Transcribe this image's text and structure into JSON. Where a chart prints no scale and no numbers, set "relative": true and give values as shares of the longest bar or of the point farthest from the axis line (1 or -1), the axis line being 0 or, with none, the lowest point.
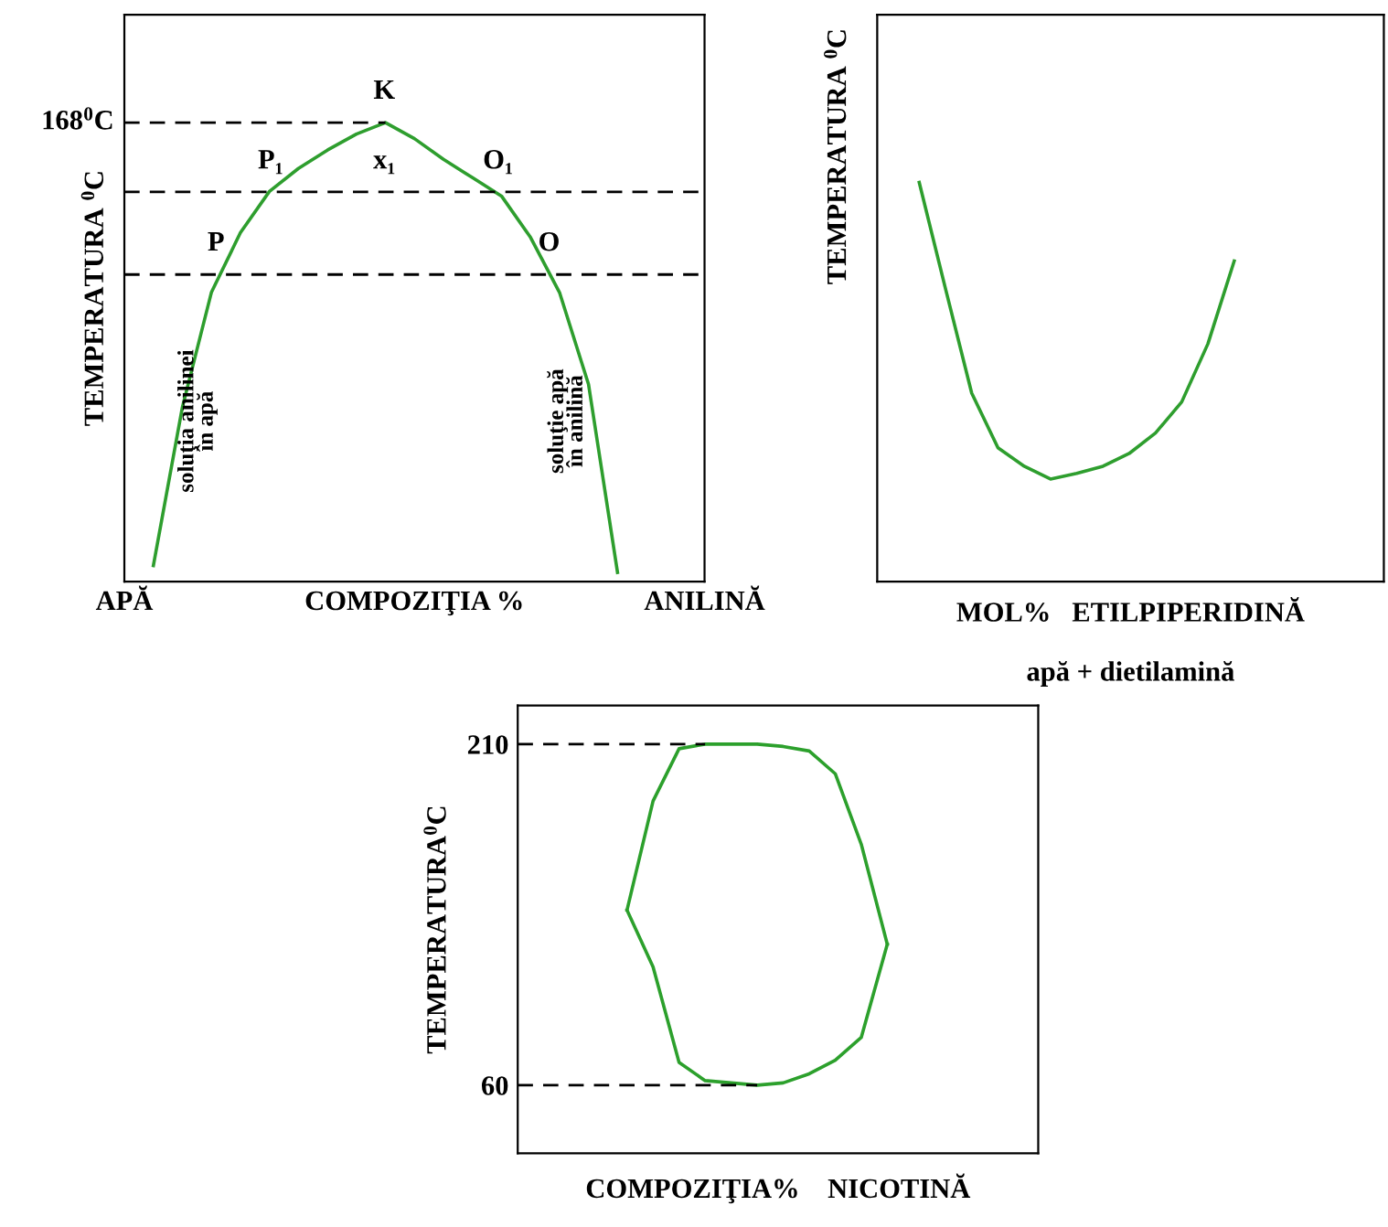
{
  "chart_data": [
    {
      "type": "line",
      "relative": true,
      "xlabel": "COMPOZIŢIA %",
      "ylabel": "TEMPERATURA $^{0}$C",
      "categories": [
        "APĂ",
        null,
        null,
        null,
        null,
        null,
        null,
        null,
        null,
        null,
        null,
        null,
        null,
        null,
        null,
        null,
        null,
        null,
        null,
        null,
        "ANILINĂ"
      ],
      "series": [
        {
          "color": "#2e9e2e",
          "values": [
            null,
            0.035,
            0.38,
            0.63,
            0.76,
            0.85,
            0.9,
            0.94,
            0.975,
            1,
            0.965,
            0.92,
            0.88,
            0.84,
            0.75,
            0.63,
            0.43,
            0.02,
            null,
            null,
            null
          ]
        }
      ],
      "ref_lines": [
        {
          "axis": "y",
          "value": 1,
          "label": "168$^{0}$C",
          "line_style": "dashed",
          "color": "#000000"
        },
        {
          "axis": "y",
          "value": 0.849,
          "line_style": "dashed",
          "color": "#000000"
        },
        {
          "axis": "y",
          "value": 0.669,
          "line_style": "dashed",
          "color": "#000000"
        }
      ],
      "annotations": [
        "K",
        "P₁",
        "x₁",
        "O₁",
        "P",
        "O",
        "soluţia anilinei\nîn apă",
        "soluţie apă\nîn anilină"
      ]
    },
    {
      "type": "line",
      "relative": true,
      "xlabel": "MOL%   ETILPIPERIDINĂ",
      "ylabel": "TEMPERATURA $^{0}$C",
      "categories": [
        null,
        null,
        null,
        null,
        null,
        null,
        null,
        null,
        null,
        null,
        null,
        null,
        null
      ],
      "tick_labels": false,
      "series": [
        {
          "color": "#2e9e2e",
          "values": [
            1,
            0.734,
            0.472,
            0.335,
            0.289,
            0.257,
            0.271,
            0.289,
            0.321,
            0.372,
            0.45,
            0.596,
            0.803
          ]
        }
      ],
      "annotations": [
        "apă + dietilamină"
      ]
    },
    {
      "type": "line",
      "xlabel": "COMPOZIŢIA%    NICOTINĂ",
      "ylabel": "TEMPERATURA$^{0}$C",
      "categories": [
        null,
        null,
        null,
        null,
        null,
        null,
        null,
        null,
        null,
        null,
        null
      ],
      "ylim": [
        30,
        227
      ],
      "yticks": [
        60,
        210
      ],
      "tick_labels": "y",
      "series": [
        {
          "color": "#2ca02c",
          "values": [
            137,
            185,
            208,
            210,
            210,
            210,
            209,
            207,
            197,
            166,
            122
          ]
        },
        {
          "color": "#2ca02c",
          "values": [
            137,
            112,
            70,
            62,
            61,
            60,
            61,
            65,
            71,
            81,
            122
          ]
        }
      ],
      "ref_lines": [
        {
          "axis": "y",
          "value": 210,
          "line_style": "dashed",
          "color": "#000000"
        },
        {
          "axis": "y",
          "value": 60,
          "line_style": "dashed",
          "color": "#000000"
        }
      ]
    }
  ]
}
